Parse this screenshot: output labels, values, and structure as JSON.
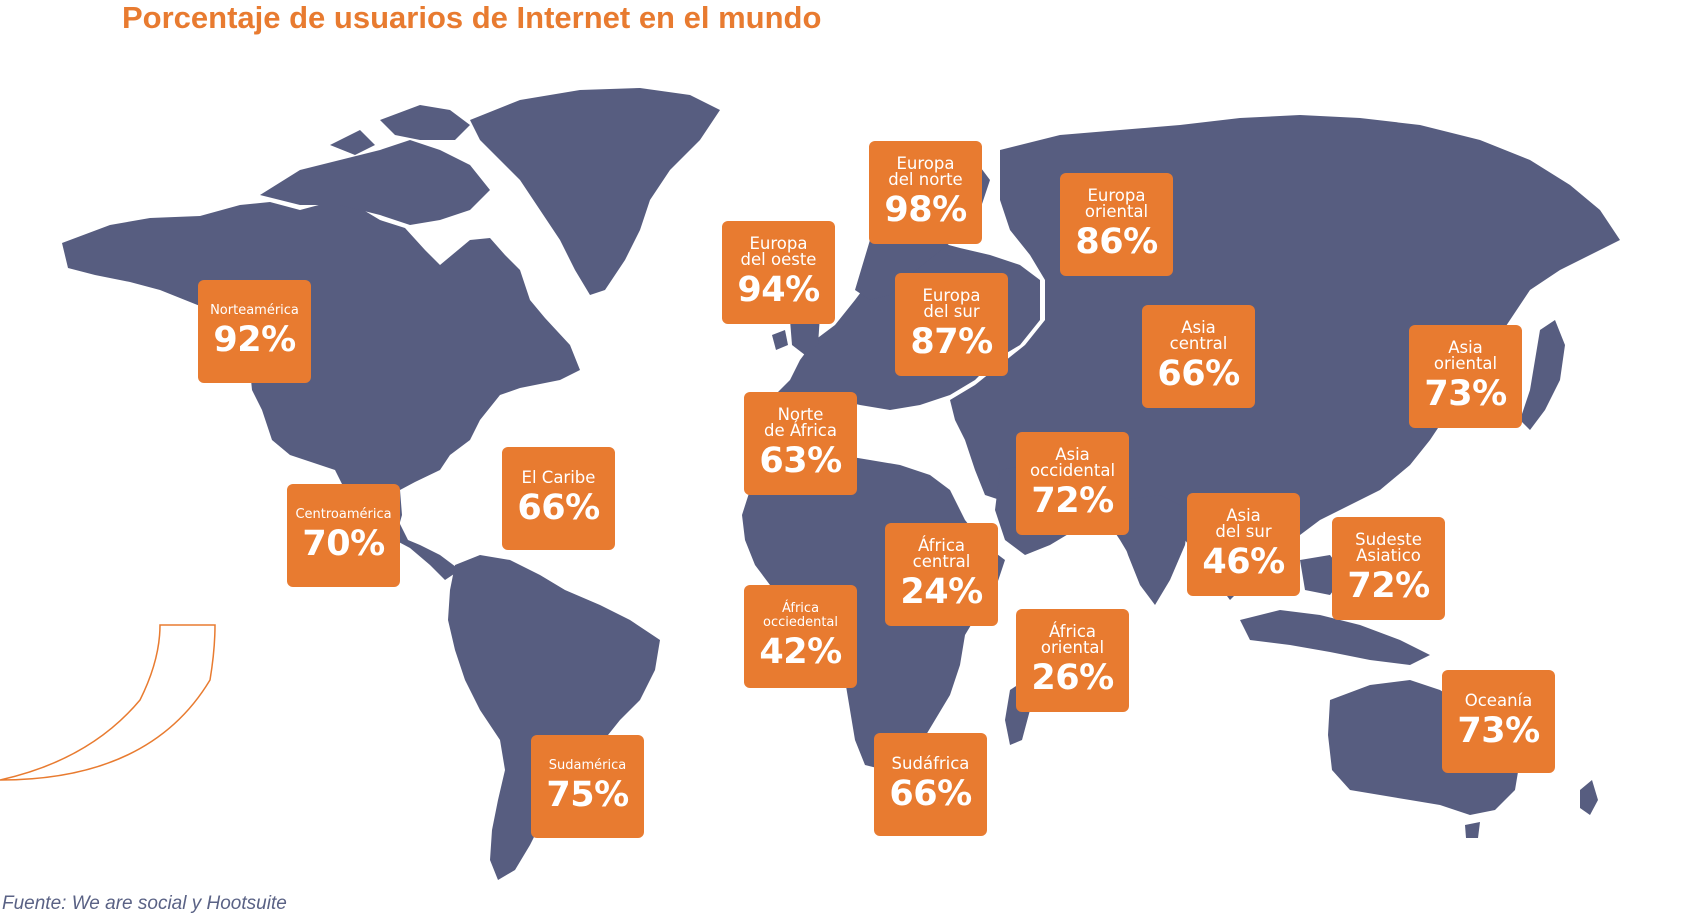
{
  "title": "Porcentaje de usuarios de Internet en el mundo",
  "source": "Fuente: We are social y Hootsuite",
  "colors": {
    "accent": "#e87b30",
    "land": "#575d80",
    "source_text": "#5a6285"
  },
  "regions": [
    {
      "name": "Norteamérica",
      "value": "92%"
    },
    {
      "name": "Centroamérica",
      "value": "70%"
    },
    {
      "name": "El Caribe",
      "value": "66%"
    },
    {
      "name": "Sudamérica",
      "value": "75%"
    },
    {
      "name": "Europa\ndel oeste",
      "value": "94%"
    },
    {
      "name": "Europa\ndel norte",
      "value": "98%"
    },
    {
      "name": "Europa\ndel sur",
      "value": "87%"
    },
    {
      "name": "Europa\noriental",
      "value": "86%"
    },
    {
      "name": "Norte\nde África",
      "value": "63%"
    },
    {
      "name": "África\nocciedental",
      "value": "42%"
    },
    {
      "name": "África\ncentral",
      "value": "24%"
    },
    {
      "name": "África\noriental",
      "value": "26%"
    },
    {
      "name": "Sudáfrica",
      "value": "66%"
    },
    {
      "name": "Asia\noccidental",
      "value": "72%"
    },
    {
      "name": "Asia\ncentral",
      "value": "66%"
    },
    {
      "name": "Asia\ndel sur",
      "value": "46%"
    },
    {
      "name": "Asia\noriental",
      "value": "73%"
    },
    {
      "name": "Sudeste\nAsiatico",
      "value": "72%"
    },
    {
      "name": "Oceanía",
      "value": "73%"
    }
  ]
}
